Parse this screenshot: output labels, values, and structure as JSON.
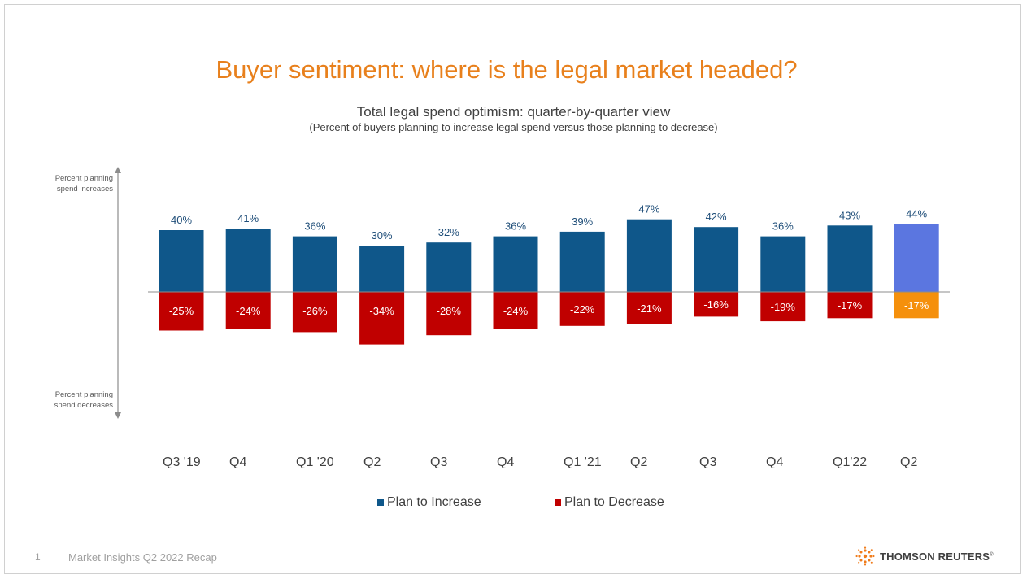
{
  "slide": {
    "title": "Buyer sentiment: where is the legal market headed?",
    "subtitle": "Total legal spend optimism: quarter-by-quarter view",
    "subnote": "(Percent of buyers planning to increase legal spend versus those planning to decrease)",
    "axis_top_label_1": "Percent planning",
    "axis_top_label_2": "spend increases",
    "axis_bottom_label_1": "Percent planning",
    "axis_bottom_label_2": "spend decreases",
    "page_number": "1",
    "footer_text": "Market Insights Q2 2022 Recap",
    "logo_text": "THOMSON REUTERS",
    "logo_mark": "®"
  },
  "chart_data": {
    "type": "bar",
    "title": "Total legal spend optimism: quarter-by-quarter view",
    "categories": [
      "Q3 '19",
      "Q4",
      "Q1 '20",
      "Q2",
      "Q3",
      "Q4",
      "Q1 '21",
      "Q2",
      "Q3",
      "Q4",
      "Q1'22",
      "Q2"
    ],
    "series": [
      {
        "name": "Plan to Increase",
        "values": [
          40,
          41,
          36,
          30,
          32,
          36,
          39,
          47,
          42,
          36,
          43,
          44
        ],
        "labels": [
          "40%",
          "41%",
          "36%",
          "30%",
          "32%",
          "36%",
          "39%",
          "47%",
          "42%",
          "36%",
          "43%",
          "44%"
        ]
      },
      {
        "name": "Plan to Decrease",
        "values": [
          -25,
          -24,
          -26,
          -34,
          -28,
          -24,
          -22,
          -21,
          -16,
          -19,
          -17,
          -17
        ],
        "labels": [
          "-25%",
          "-24%",
          "-26%",
          "-34%",
          "-28%",
          "-24%",
          "-22%",
          "-21%",
          "-16%",
          "-19%",
          "-17%",
          "-17%"
        ]
      }
    ],
    "highlight_index": 11,
    "colors": {
      "increase": "#0f578a",
      "decrease": "#c00000",
      "increase_highlight": "#5b76e0",
      "decrease_highlight": "#f5900c",
      "increase_label": "#1f4e79",
      "decrease_label": "#ffffff",
      "highlight_increase_label": "#1f4e79"
    },
    "xlabel": "",
    "ylabel": "",
    "legend_position": "bottom"
  },
  "legend": {
    "increase": "Plan to Increase",
    "decrease": "Plan to Decrease"
  },
  "colors": {
    "title": "#e8801c",
    "logo_orange": "#f07c1b"
  }
}
